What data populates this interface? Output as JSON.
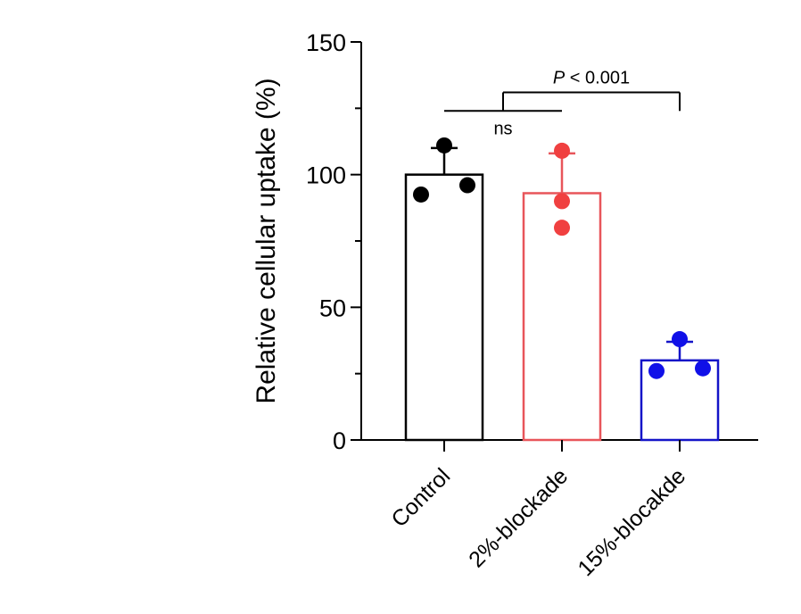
{
  "chart_data": {
    "type": "bar",
    "categories": [
      "Control",
      "2%-blockade",
      "15%-blocakde"
    ],
    "values": [
      100,
      93,
      30
    ],
    "errors": [
      10,
      15,
      7
    ],
    "points": [
      [
        111,
        92.5,
        96
      ],
      [
        109,
        90,
        80
      ],
      [
        38,
        26,
        27
      ]
    ],
    "colors": [
      "#000000",
      "#e8555a",
      "#1414c8"
    ],
    "dot_colors": [
      "#000000",
      "#f04040",
      "#1010e8"
    ],
    "ylabel": "Relative cellular uptake (%)",
    "xlabel": "",
    "ylim": [
      0,
      150
    ],
    "yticks": [
      0,
      50,
      100,
      150
    ],
    "yminor": [
      25,
      75,
      125
    ],
    "annotations": [
      {
        "from": 0,
        "to": 1,
        "y": 124,
        "label": "ns",
        "italic_prefix": "",
        "label_rest": "ns"
      },
      {
        "from_bracket": 0,
        "to": 2,
        "y": 131,
        "label": "P < 0.001",
        "italic_prefix": "P",
        "label_rest": " < 0.001"
      }
    ]
  }
}
